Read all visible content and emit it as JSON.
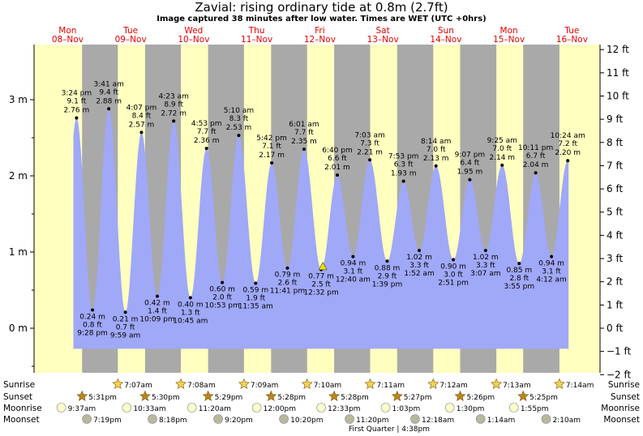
{
  "header": {
    "title": "Zavial: rising  ordinary tide at 0.8m (2.7ft)",
    "subtitle": "Image captured 38 minutes after low water. Times are WET (UTC +0hrs)"
  },
  "chart_data": {
    "type": "area",
    "title": "Zavial: rising  ordinary tide at 0.8m (2.7ft)",
    "y_left_unit": "m",
    "y_left_ticks": [
      "0 m",
      "1 m",
      "2 m",
      "3 m"
    ],
    "y_right_ticks": [
      "−2 ft",
      "−1 ft",
      "0 ft",
      "1 ft",
      "2 ft",
      "3 ft",
      "4 ft",
      "5 ft",
      "6 ft",
      "7 ft",
      "8 ft",
      "9 ft",
      "10 ft",
      "11 ft",
      "12 ft"
    ],
    "ylim_m": [
      -0.6,
      3.88
    ],
    "days": [
      {
        "dow": "Mon",
        "date": "08–Nov"
      },
      {
        "dow": "Tue",
        "date": "09–Nov"
      },
      {
        "dow": "Wed",
        "date": "10–Nov"
      },
      {
        "dow": "Thu",
        "date": "11–Nov"
      },
      {
        "dow": "Fri",
        "date": "12–Nov"
      },
      {
        "dow": "Sat",
        "date": "13–Nov"
      },
      {
        "dow": "Sun",
        "date": "14–Nov"
      },
      {
        "dow": "Mon",
        "date": "15–Nov"
      },
      {
        "dow": "Tue",
        "date": "16–Nov"
      }
    ],
    "tides": [
      {
        "type": "high",
        "day": 0,
        "time": "3:24 pm",
        "m": 2.76,
        "ft": "9.1 ft",
        "m_label": "2.76 m"
      },
      {
        "type": "low",
        "day": 0,
        "time": "9:28 pm",
        "m": 0.24,
        "ft": "0.8 ft",
        "m_label": "0.24 m"
      },
      {
        "type": "high",
        "day": 1,
        "time": "3:41 am",
        "m": 2.88,
        "ft": "9.4 ft",
        "m_label": "2.88 m"
      },
      {
        "type": "low",
        "day": 1,
        "time": "9:59 am",
        "m": 0.21,
        "ft": "0.7 ft",
        "m_label": "0.21 m"
      },
      {
        "type": "high",
        "day": 1,
        "time": "4:07 pm",
        "m": 2.57,
        "ft": "8.4 ft",
        "m_label": "2.57 m"
      },
      {
        "type": "low",
        "day": 1,
        "time": "10:09 pm",
        "m": 0.42,
        "ft": "1.4 ft",
        "m_label": "0.42 m"
      },
      {
        "type": "high",
        "day": 2,
        "time": "4:23 am",
        "m": 2.72,
        "ft": "8.9 ft",
        "m_label": "2.72 m"
      },
      {
        "type": "low",
        "day": 2,
        "time": "10:45 am",
        "m": 0.4,
        "ft": "1.3 ft",
        "m_label": "0.40 m"
      },
      {
        "type": "high",
        "day": 2,
        "time": "4:53 pm",
        "m": 2.36,
        "ft": "7.7 ft",
        "m_label": "2.36 m"
      },
      {
        "type": "low",
        "day": 2,
        "time": "10:53 pm",
        "m": 0.6,
        "ft": "2.0 ft",
        "m_label": "0.60 m"
      },
      {
        "type": "high",
        "day": 3,
        "time": "5:10 am",
        "m": 2.53,
        "ft": "8.3 ft",
        "m_label": "2.53 m"
      },
      {
        "type": "low",
        "day": 3,
        "time": "11:35 am",
        "m": 0.59,
        "ft": "1.9 ft",
        "m_label": "0.59 m"
      },
      {
        "type": "high",
        "day": 3,
        "time": "5:42 pm",
        "m": 2.17,
        "ft": "7.1 ft",
        "m_label": "2.17 m"
      },
      {
        "type": "low",
        "day": 3,
        "time": "11:41 pm",
        "m": 0.79,
        "ft": "2.6 ft",
        "m_label": "0.79 m"
      },
      {
        "type": "high",
        "day": 4,
        "time": "6:01 am",
        "m": 2.35,
        "ft": "7.7 ft",
        "m_label": "2.35 m"
      },
      {
        "type": "low",
        "day": 4,
        "time": "12:32 pm",
        "m": 0.77,
        "ft": "2.5 ft",
        "m_label": "0.77 m"
      },
      {
        "type": "high",
        "day": 4,
        "time": "6:40 pm",
        "m": 2.01,
        "ft": "6.6 ft",
        "m_label": "2.01 m"
      },
      {
        "type": "low",
        "day": 5,
        "time": "12:40 am",
        "m": 0.94,
        "ft": "3.1 ft",
        "m_label": "0.94 m"
      },
      {
        "type": "high",
        "day": 5,
        "time": "7:03 am",
        "m": 2.21,
        "ft": "7.3 ft",
        "m_label": "2.21 m"
      },
      {
        "type": "low",
        "day": 5,
        "time": "1:39 pm",
        "m": 0.88,
        "ft": "2.9 ft",
        "m_label": "0.88 m"
      },
      {
        "type": "high",
        "day": 5,
        "time": "7:53 pm",
        "m": 1.93,
        "ft": "6.3 ft",
        "m_label": "1.93 m"
      },
      {
        "type": "low",
        "day": 6,
        "time": "1:52 am",
        "m": 1.02,
        "ft": "3.3 ft",
        "m_label": "1.02 m"
      },
      {
        "type": "high",
        "day": 6,
        "time": "8:14 am",
        "m": 2.13,
        "ft": "7.0 ft",
        "m_label": "2.13 m"
      },
      {
        "type": "low",
        "day": 6,
        "time": "2:51 pm",
        "m": 0.9,
        "ft": "3.0 ft",
        "m_label": "0.90 m"
      },
      {
        "type": "high",
        "day": 6,
        "time": "9:07 pm",
        "m": 1.95,
        "ft": "6.4 ft",
        "m_label": "1.95 m"
      },
      {
        "type": "low",
        "day": 7,
        "time": "3:07 am",
        "m": 1.02,
        "ft": "3.3 ft",
        "m_label": "1.02 m"
      },
      {
        "type": "high",
        "day": 7,
        "time": "9:25 am",
        "m": 2.14,
        "ft": "7.0 ft",
        "m_label": "2.14 m"
      },
      {
        "type": "low",
        "day": 7,
        "time": "3:55 pm",
        "m": 0.85,
        "ft": "2.8 ft",
        "m_label": "0.85 m"
      },
      {
        "type": "high",
        "day": 7,
        "time": "10:11 pm",
        "m": 2.04,
        "ft": "6.7 ft",
        "m_label": "2.04 m"
      },
      {
        "type": "low",
        "day": 8,
        "time": "4:12 am",
        "m": 0.94,
        "ft": "3.1 ft",
        "m_label": "0.94 m"
      },
      {
        "type": "high",
        "day": 8,
        "time": "10:24 am",
        "m": 2.2,
        "ft": "7.2 ft",
        "m_label": "2.20 m"
      }
    ],
    "current": {
      "day": 4,
      "time": "1:10 pm",
      "m": 0.8
    },
    "sunrise": [
      {
        "day": 1,
        "time": "7:07am"
      },
      {
        "day": 2,
        "time": "7:08am"
      },
      {
        "day": 3,
        "time": "7:09am"
      },
      {
        "day": 4,
        "time": "7:10am"
      },
      {
        "day": 5,
        "time": "7:11am"
      },
      {
        "day": 6,
        "time": "7:12am"
      },
      {
        "day": 7,
        "time": "7:13am"
      },
      {
        "day": 8,
        "time": "7:14am"
      }
    ],
    "sunset": [
      {
        "day": 0,
        "time": "5:31pm"
      },
      {
        "day": 1,
        "time": "5:30pm"
      },
      {
        "day": 2,
        "time": "5:29pm"
      },
      {
        "day": 3,
        "time": "5:28pm"
      },
      {
        "day": 4,
        "time": "5:28pm"
      },
      {
        "day": 5,
        "time": "5:27pm"
      },
      {
        "day": 6,
        "time": "5:26pm"
      },
      {
        "day": 7,
        "time": "5:25pm"
      }
    ],
    "moonrise": [
      {
        "day": 0,
        "time": "9:37am"
      },
      {
        "day": 1,
        "time": "10:33am"
      },
      {
        "day": 2,
        "time": "11:20am"
      },
      {
        "day": 3,
        "time": "12:00pm"
      },
      {
        "day": 4,
        "time": "12:33pm"
      },
      {
        "day": 5,
        "time": "1:03pm"
      },
      {
        "day": 6,
        "time": "1:30pm"
      },
      {
        "day": 7,
        "time": "1:55pm"
      }
    ],
    "moonset": [
      {
        "day": 0,
        "time": "7:19pm"
      },
      {
        "day": 1,
        "time": "8:18pm"
      },
      {
        "day": 2,
        "time": "9:20pm"
      },
      {
        "day": 3,
        "time": "10:20pm"
      },
      {
        "day": 4,
        "time": "11:20pm"
      },
      {
        "day": 6,
        "time": "12:18am"
      },
      {
        "day": 7,
        "time": "1:14am"
      },
      {
        "day": 8,
        "time": "2:10am"
      }
    ],
    "row_labels": {
      "sunrise": "Sunrise",
      "sunset": "Sunset",
      "moonrise": "Moonrise",
      "moonset": "Moonset"
    },
    "moon_phase": "First Quarter | 4:38pm",
    "colors": {
      "day": "#ffffc0",
      "night": "#a9a9a9",
      "water": "#a0a8f8",
      "current": "#f0e000",
      "sun_icon": "#f7d24a",
      "sunset_icon": "#b8861b",
      "moon_light": "#ffffcc",
      "moon_dark": "#b8b8a0"
    }
  }
}
